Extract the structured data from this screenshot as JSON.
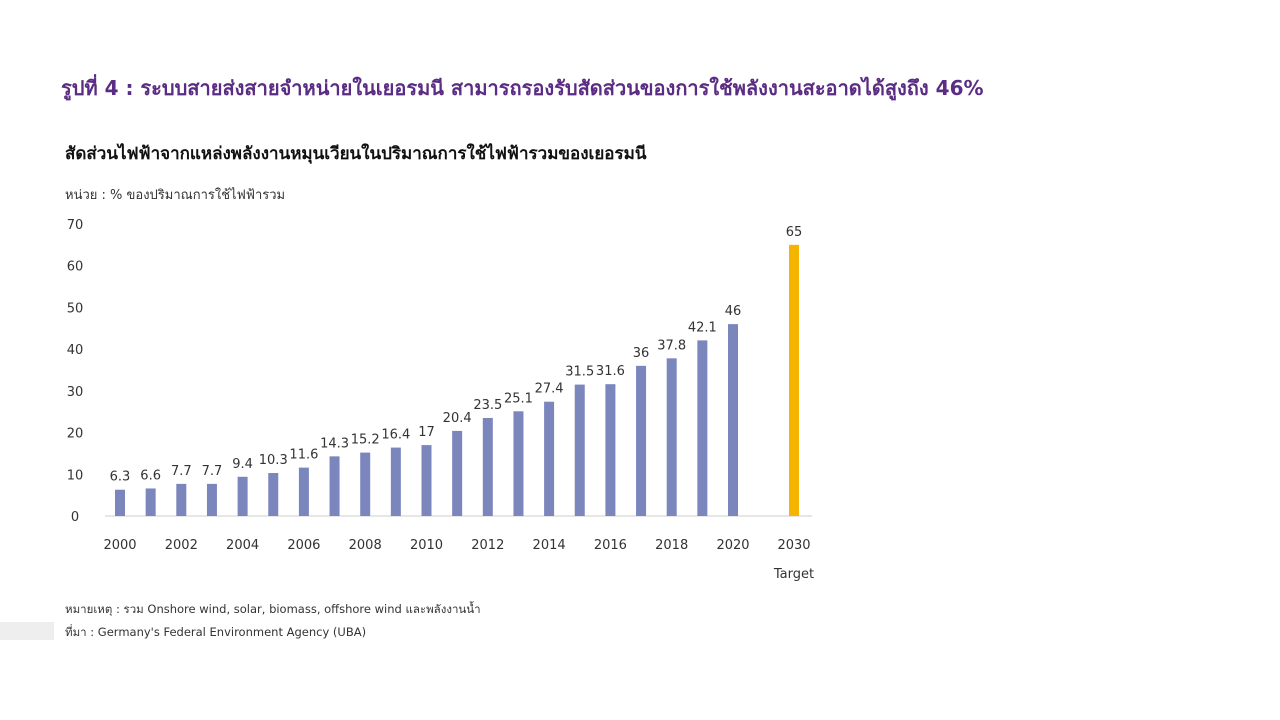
{
  "figure_title": "รูปที่ 4 : ระบบสายส่งสายจำหน่ายในเยอรมนี สามารถรองรับสัดส่วนของการใช้พลังงานสะอาดได้สูงถึง 46%",
  "colors": {
    "title": "#5b2c83",
    "bar": "#7b86bd",
    "target_bar": "#f5b400",
    "axis": "#cccccc"
  },
  "chart_data": {
    "type": "bar",
    "title": "สัดส่วนไฟฟ้าจากแหล่งพลังงานหมุนเวียนในปริมาณการใช้ไฟฟ้ารวมของเยอรมนี",
    "unit_label": "หน่วย : % ของปริมาณการใช้ไฟฟ้ารวม",
    "categories": [
      "2000",
      "2001",
      "2002",
      "2003",
      "2004",
      "2005",
      "2006",
      "2007",
      "2008",
      "2009",
      "2010",
      "2011",
      "2012",
      "2013",
      "2014",
      "2015",
      "2016",
      "2017",
      "2018",
      "2019",
      "2020",
      "2030"
    ],
    "values": [
      6.3,
      6.6,
      7.7,
      7.7,
      9.4,
      10.3,
      11.6,
      14.3,
      15.2,
      16.4,
      17,
      20.4,
      23.5,
      25.1,
      27.4,
      31.5,
      31.6,
      36,
      37.8,
      42.1,
      46,
      65
    ],
    "data_labels": [
      "6.3",
      "6.6",
      "7.7",
      "7.7",
      "9.4",
      "10.3",
      "11.6",
      "14.3",
      "15.2",
      "16.4",
      "17",
      "20.4",
      "23.5",
      "25.1",
      "27.4",
      "31.5",
      "31.6",
      "36",
      "37.8",
      "42.1",
      "46",
      "65"
    ],
    "highlight_category": "2030",
    "x_tick_labels": [
      "2000",
      "2002",
      "2004",
      "2006",
      "2008",
      "2010",
      "2012",
      "2014",
      "2016",
      "2018",
      "2020",
      "2030"
    ],
    "target_label": "Target",
    "ylim": [
      0,
      70
    ],
    "y_ticks": [
      0,
      10,
      20,
      30,
      40,
      50,
      60,
      70
    ],
    "grid": false
  },
  "note": "หมายเหตุ : รวม  Onshore wind, solar, biomass, offshore wind  และพลังงานน้ำ",
  "source": "ที่มา :  Germany's Federal Environment Agency (UBA)"
}
